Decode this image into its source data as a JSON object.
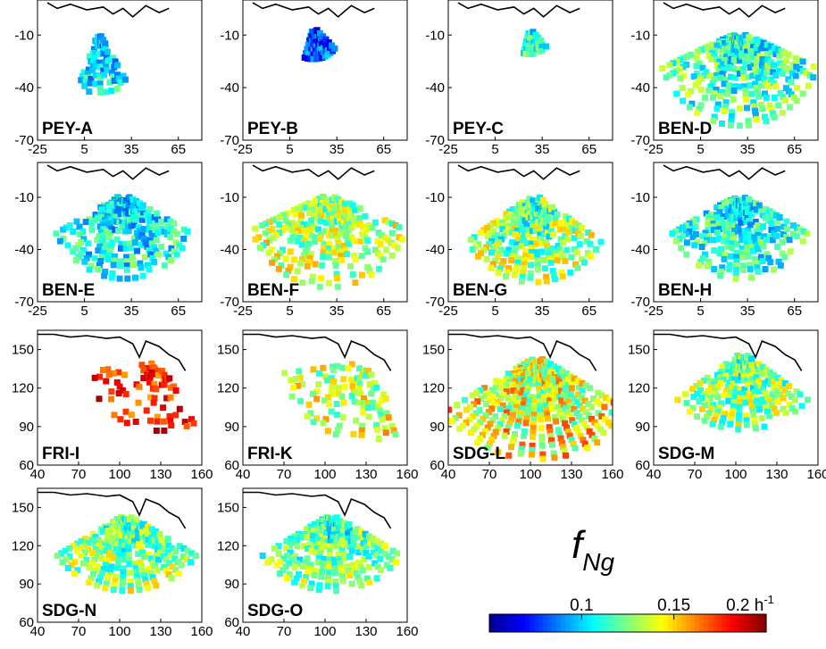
{
  "chart_data": {
    "type": "heatmap",
    "variable_symbol": "f",
    "variable_subscript": "Ng",
    "colorbar": {
      "range": [
        0.05,
        0.2
      ],
      "ticks": [
        {
          "value": 0.1,
          "label": "0.1"
        },
        {
          "value": 0.15,
          "label": "0.15"
        },
        {
          "value": 0.2,
          "label": "0.2 h"
        }
      ],
      "unit_superscript": "-1",
      "colormap": [
        "#00008f",
        "#0000ff",
        "#0080ff",
        "#00ffff",
        "#80ff80",
        "#ffff00",
        "#ff8000",
        "#ff0000",
        "#800000"
      ]
    },
    "groups": [
      {
        "xticks": [
          "-25",
          "5",
          "35",
          "65"
        ],
        "yticks": [
          "-10",
          "-40",
          "-70"
        ]
      },
      {
        "xticks": [
          "40",
          "70",
          "100",
          "130",
          "160"
        ],
        "yticks": [
          "150",
          "120",
          "90",
          "60"
        ]
      }
    ],
    "panels": [
      {
        "label": "PEY-A",
        "group": 0,
        "xlim": [
          -25,
          80
        ],
        "ylim": [
          -70,
          10
        ],
        "fan": {
          "apex": [
            14,
            -8
          ],
          "a0": 245,
          "a1": 305,
          "r0": 2,
          "r1": 36,
          "mean": 0.095,
          "spread": 0.02,
          "density": 0.6
        }
      },
      {
        "label": "PEY-B",
        "group": 0,
        "xlim": [
          -25,
          80
        ],
        "ylim": [
          -70,
          10
        ],
        "fan": {
          "apex": [
            20,
            -5
          ],
          "a0": 250,
          "a1": 320,
          "r0": 2,
          "r1": 20,
          "mean": 0.075,
          "spread": 0.02,
          "density": 0.9
        }
      },
      {
        "label": "PEY-C",
        "group": 0,
        "xlim": [
          -25,
          80
        ],
        "ylim": [
          -70,
          10
        ],
        "fan": {
          "apex": [
            27,
            -6
          ],
          "a0": 252,
          "a1": 318,
          "r0": 2,
          "r1": 16,
          "mean": 0.11,
          "spread": 0.02,
          "density": 0.7
        }
      },
      {
        "label": "BEN-D",
        "group": 0,
        "xlim": [
          -25,
          80
        ],
        "ylim": [
          -70,
          10
        ],
        "fan": {
          "apex": [
            30,
            -8
          ],
          "a0": 200,
          "a1": 340,
          "r0": 3,
          "r1": 55,
          "mean": 0.11,
          "spread": 0.025,
          "density": 0.65
        }
      },
      {
        "label": "BEN-E",
        "group": 0,
        "xlim": [
          -25,
          80
        ],
        "ylim": [
          -70,
          10
        ],
        "fan": {
          "apex": [
            30,
            -8
          ],
          "a0": 205,
          "a1": 335,
          "r0": 3,
          "r1": 50,
          "mean": 0.1,
          "spread": 0.022,
          "density": 0.65
        }
      },
      {
        "label": "BEN-F",
        "group": 0,
        "xlim": [
          -25,
          80
        ],
        "ylim": [
          -70,
          10
        ],
        "fan": {
          "apex": [
            30,
            -8
          ],
          "a0": 200,
          "a1": 340,
          "r0": 3,
          "r1": 55,
          "mean": 0.125,
          "spread": 0.025,
          "density": 0.6
        }
      },
      {
        "label": "BEN-G",
        "group": 0,
        "xlim": [
          -25,
          80
        ],
        "ylim": [
          -70,
          10
        ],
        "fan": {
          "apex": [
            30,
            -8
          ],
          "a0": 210,
          "a1": 330,
          "r0": 3,
          "r1": 52,
          "mean": 0.12,
          "spread": 0.028,
          "density": 0.65
        }
      },
      {
        "label": "BEN-H",
        "group": 0,
        "xlim": [
          -25,
          80
        ],
        "ylim": [
          -70,
          10
        ],
        "fan": {
          "apex": [
            30,
            -8
          ],
          "a0": 205,
          "a1": 335,
          "r0": 3,
          "r1": 50,
          "mean": 0.105,
          "spread": 0.022,
          "density": 0.65
        }
      },
      {
        "label": "FRI-I",
        "group": 1,
        "xlim": [
          40,
          160
        ],
        "ylim": [
          60,
          165
        ],
        "fan": {
          "apex": [
            130,
            140
          ],
          "a0": 185,
          "a1": 300,
          "r0": 5,
          "r1": 55,
          "mean": 0.17,
          "spread": 0.02,
          "density": 0.25
        }
      },
      {
        "label": "FRI-K",
        "group": 1,
        "xlim": [
          40,
          160
        ],
        "ylim": [
          60,
          165
        ],
        "fan": {
          "apex": [
            130,
            140
          ],
          "a0": 185,
          "a1": 300,
          "r0": 5,
          "r1": 62,
          "mean": 0.13,
          "spread": 0.025,
          "density": 0.4
        }
      },
      {
        "label": "SDG-L",
        "group": 1,
        "xlim": [
          40,
          160
        ],
        "ylim": [
          60,
          165
        ],
        "fan": {
          "apex": [
            105,
            145
          ],
          "a0": 210,
          "a1": 330,
          "r0": 3,
          "r1": 82,
          "mean": 0.135,
          "spread": 0.03,
          "density": 0.85
        }
      },
      {
        "label": "SDG-M",
        "group": 1,
        "xlim": [
          40,
          160
        ],
        "ylim": [
          60,
          165
        ],
        "fan": {
          "apex": [
            105,
            148
          ],
          "a0": 215,
          "a1": 325,
          "r0": 3,
          "r1": 62,
          "mean": 0.12,
          "spread": 0.025,
          "density": 0.8
        }
      },
      {
        "label": "SDG-N",
        "group": 1,
        "xlim": [
          40,
          160
        ],
        "ylim": [
          60,
          165
        ],
        "fan": {
          "apex": [
            105,
            145
          ],
          "a0": 210,
          "a1": 330,
          "r0": 3,
          "r1": 62,
          "mean": 0.12,
          "spread": 0.025,
          "density": 0.75
        }
      },
      {
        "label": "SDG-O",
        "group": 1,
        "xlim": [
          40,
          160
        ],
        "ylim": [
          60,
          165
        ],
        "fan": {
          "apex": [
            105,
            145
          ],
          "a0": 210,
          "a1": 330,
          "r0": 3,
          "r1": 62,
          "mean": 0.115,
          "spread": 0.025,
          "density": 0.75
        }
      }
    ]
  }
}
